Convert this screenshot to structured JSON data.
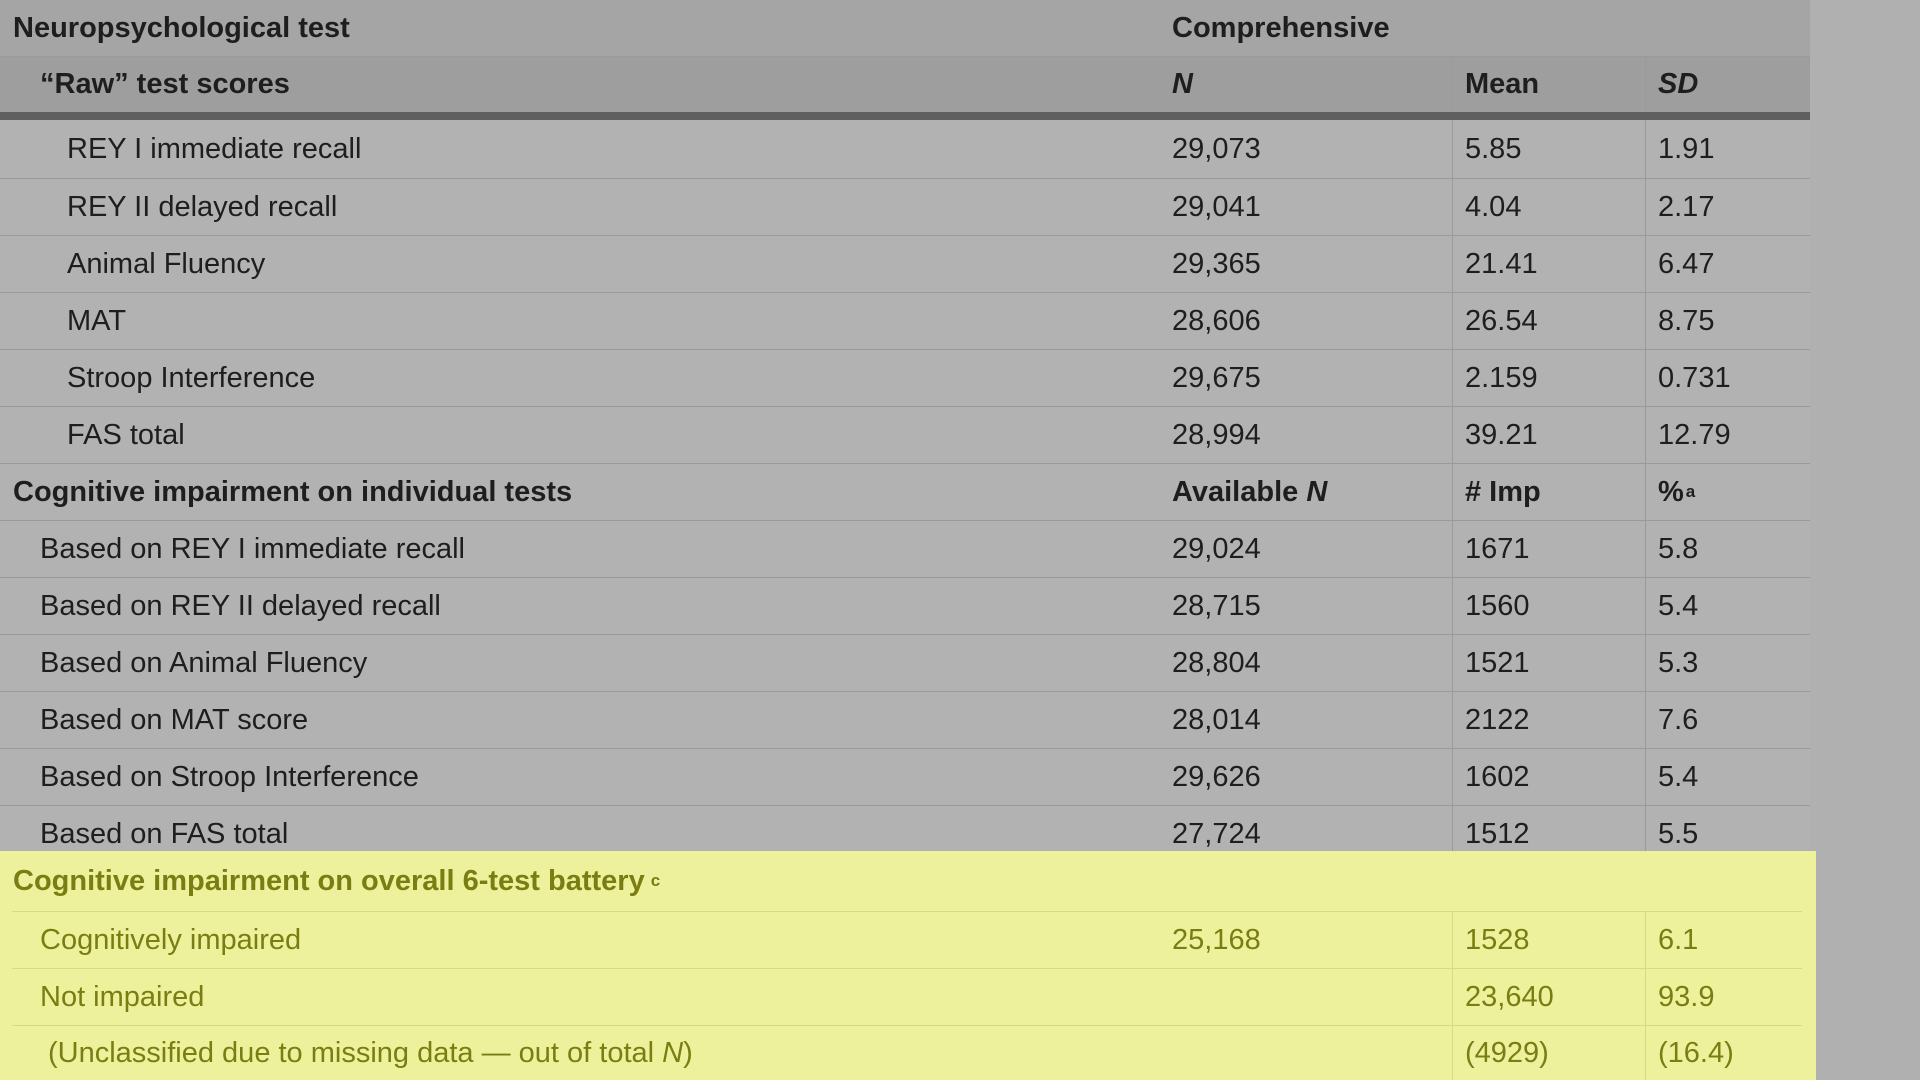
{
  "header": {
    "col0": "Neuropsychological test",
    "col1": "Comprehensive"
  },
  "subheader": {
    "label": "“Raw” test scores",
    "n": "N",
    "mean": "Mean",
    "sd": "SD"
  },
  "raw_rows": [
    {
      "label": "REY I immediate recall",
      "n": "29,073",
      "mean": "5.85",
      "sd": "1.91"
    },
    {
      "label": "REY II delayed recall",
      "n": "29,041",
      "mean": "4.04",
      "sd": "2.17"
    },
    {
      "label": "Animal Fluency",
      "n": "29,365",
      "mean": "21.41",
      "sd": "6.47"
    },
    {
      "label": "MAT",
      "n": "28,606",
      "mean": "26.54",
      "sd": "8.75"
    },
    {
      "label": "Stroop Interference",
      "n": "29,675",
      "mean": "2.159",
      "sd": "0.731"
    },
    {
      "label": "FAS total",
      "n": "28,994",
      "mean": "39.21",
      "sd": "12.79"
    }
  ],
  "impairment_section": {
    "label": "Cognitive impairment on individual tests",
    "n_prefix": "Available",
    "n_italic": "N",
    "imp": "# Imp",
    "pct": "%",
    "pct_sup": "a"
  },
  "impairment_rows": [
    {
      "label": "Based on REY I immediate recall",
      "n": "29,024",
      "imp": "1671",
      "pct": "5.8"
    },
    {
      "label": "Based on REY II delayed recall",
      "n": "28,715",
      "imp": "1560",
      "pct": "5.4"
    },
    {
      "label": "Based on Animal Fluency",
      "n": "28,804",
      "imp": "1521",
      "pct": "5.3"
    },
    {
      "label": "Based on MAT score",
      "n": "28,014",
      "imp": "2122",
      "pct": "7.6"
    },
    {
      "label": "Based on Stroop Interference",
      "n": "29,626",
      "imp": "1602",
      "pct": "5.4"
    },
    {
      "label": "Based on FAS total",
      "n": "27,724",
      "imp": "1512",
      "pct": "5.5"
    }
  ],
  "battery": {
    "label": "Cognitive impairment on overall 6-test battery",
    "sup": "c",
    "rows": [
      {
        "label": "Cognitively impaired",
        "n": "25,168",
        "imp": "1528",
        "pct": "6.1"
      },
      {
        "label": "Not impaired",
        "n": "",
        "imp": "23,640",
        "pct": "93.9"
      }
    ],
    "unclassified": {
      "label_pre": "(Unclassified due to missing data — out of total",
      "label_n": "N",
      "label_post": ")",
      "imp": "(4929)",
      "pct": "(16.4)"
    }
  },
  "colors": {
    "background": "#b2b2b2",
    "highlight": "#eef19c",
    "highlight_text": "#7a7d12",
    "rule": "#5f5f5f"
  }
}
